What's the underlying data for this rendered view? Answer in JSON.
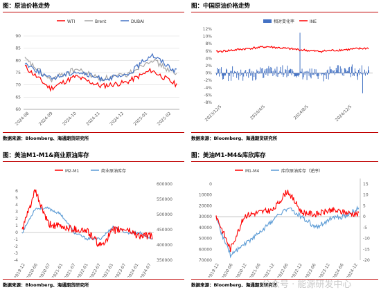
{
  "panels": [
    {
      "title": "图：原油价格走势",
      "source": "数据来源：Bloomberg、海通期货研究所",
      "chart_data": {
        "type": "line",
        "x": [
          "2024-08",
          "2024-09",
          "2024-10",
          "2024-11",
          "2024-12",
          "2025-01",
          "2025-02"
        ],
        "series": [
          {
            "name": "WTI",
            "color": "#ff0000",
            "values": [
              77.5,
              68.5,
              73.5,
              69.5,
              71.0,
              76.0,
              70.0
            ]
          },
          {
            "name": "Brent",
            "color": "#a6a6a6",
            "values": [
              80.5,
              72.0,
              76.5,
              72.5,
              74.0,
              80.5,
              74.0
            ]
          },
          {
            "name": "DUBAI",
            "color": "#4472c4",
            "values": [
              79.0,
              72.5,
              75.5,
              72.5,
              73.5,
              82.5,
              75.5
            ]
          }
        ],
        "ylim": [
          60,
          90
        ],
        "yticks": [
          "60",
          "65",
          "70",
          "75",
          "80",
          "85",
          "90"
        ],
        "xticks": [
          "2024-08",
          "2024-09",
          "2024-10",
          "2024-11",
          "2024-12",
          "2025-01",
          "2025-02"
        ],
        "legend": "top"
      }
    },
    {
      "title": "图：中国原油价格走势",
      "source": "数据来源：Bloomberg、海通期货研究所",
      "chart_data": {
        "type": "bar",
        "x": [
          "2023/12/5",
          "2024/4/5",
          "2024/8/5",
          "2024/12/5"
        ],
        "series": [
          {
            "name": "相对变化率",
            "color": "#4472c4",
            "type": "bar",
            "values": [
              0.8,
              1.0,
              0.7,
              1.5
            ]
          },
          {
            "name": "INE",
            "color": "#ff0000",
            "type": "line",
            "values": [
              5.8,
              7.2,
              5.9,
              6.8
            ]
          }
        ],
        "ylim": [
          -8,
          12
        ],
        "yticks": [
          "-8%",
          "-6%",
          "-4%",
          "-2%",
          "0%",
          "2%",
          "4%",
          "6%",
          "8%",
          "10%",
          "12%"
        ],
        "xticks": [
          "2023/12/5",
          "2024/4/5",
          "2024/8/5",
          "2024/12/5"
        ],
        "legend": "top"
      }
    },
    {
      "title": "图：美油M1-M1&商业原油库存",
      "source": "数据来源：Bloomberg、海通期货研究所",
      "chart_data": {
        "type": "line",
        "x": [
          "2019-12",
          "2020-06",
          "2020-07",
          "2021-01",
          "2021-07",
          "2022-01",
          "2022-07",
          "2023-01",
          "2023-07",
          "2024-01",
          "2024-07"
        ],
        "series": [
          {
            "name": "M2-M1",
            "axis": "left",
            "color": "#ff0000",
            "values": [
              0.3,
              6.0,
              1.2,
              0.8,
              0.5,
              0.2,
              -2.0,
              0.3,
              0.5,
              -0.5,
              -0.5
            ]
          },
          {
            "name": "商业原油库存",
            "axis": "right",
            "color": "#5b9bd5",
            "values": [
              440000,
              520000,
              520000,
              500000,
              440000,
              420000,
              420000,
              460000,
              440000,
              440000,
              420000
            ]
          }
        ],
        "ylim_left": [
          -4,
          7
        ],
        "ylim_right": [
          350000,
          600000
        ],
        "yticks_left": [
          "-4",
          "-3",
          "-2",
          "-1",
          "0",
          "1",
          "2",
          "3",
          "4",
          "5",
          "6"
        ],
        "yticks_right": [
          "350000",
          "400000",
          "450000",
          "500000",
          "550000",
          "600000"
        ],
        "legend": "top"
      }
    },
    {
      "title": "图：美油M1-M4&库欣库存",
      "source": "数据来源：Bloomberg、海通期货研究所",
      "chart_data": {
        "type": "line",
        "x": [
          "2019-12",
          "2020-06",
          "2020-12",
          "2021-06",
          "2021-12",
          "2022-06",
          "2022-12",
          "2023-06",
          "2023-12",
          "2024-06",
          "2024-12"
        ],
        "series": [
          {
            "name": "M1-M4",
            "axis": "right",
            "color": "#ff0000",
            "values": [
              0.5,
              -15.0,
              0.5,
              2.0,
              3.0,
              12.0,
              2.0,
              1.0,
              3.0,
              2.0,
              1.0
            ]
          },
          {
            "name": "库欣原油库存（逆序）",
            "axis": "left",
            "color": "#5b9bd5",
            "values": [
              33000,
              65000,
              55000,
              45000,
              33000,
              22000,
              30000,
              40000,
              32000,
              30000,
              22000
            ]
          }
        ],
        "ylim_left": [
          0,
          70000
        ],
        "ylim_right": [
          -20,
          15
        ],
        "yticks_left": [
          "0",
          "10000",
          "20000",
          "30000",
          "40000",
          "50000",
          "60000",
          "70000"
        ],
        "yticks_right": [
          "-20",
          "-15",
          "-10",
          "-5",
          "0",
          "5",
          "10",
          "15"
        ],
        "left_axis_reversed": true,
        "legend": "top"
      }
    }
  ],
  "watermark": "公众号 · 能源研发中心"
}
